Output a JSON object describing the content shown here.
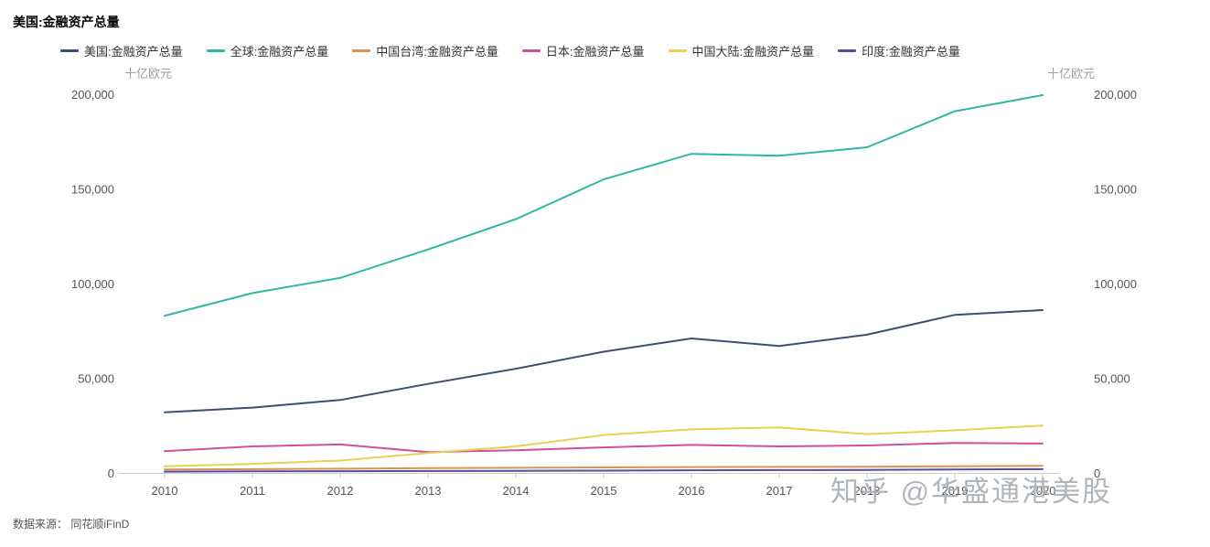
{
  "title": "美国:金融资产总量",
  "axis_unit_left": "十亿欧元",
  "axis_unit_right": "十亿欧元",
  "watermark": "知乎 @华盛通港美股",
  "source": "数据来源： 同花顺iFinD",
  "chart_data": {
    "type": "line",
    "x": [
      2010,
      2011,
      2012,
      2013,
      2014,
      2015,
      2016,
      2017,
      2018,
      2019,
      2020
    ],
    "ylim": [
      0,
      200000
    ],
    "yticks": [
      0,
      50000,
      100000,
      150000,
      200000
    ],
    "grid": false,
    "legend_position": "top",
    "axis_color": "#cccccc",
    "tick_label_color": "#555555",
    "series": [
      {
        "name": "美国:金融资产总量",
        "color": "#3f4e73",
        "values": [
          32000,
          34500,
          38500,
          47000,
          55000,
          64000,
          71000,
          67000,
          73000,
          83500,
          86000
        ]
      },
      {
        "name": "全球:金融资产总量",
        "color": "#2eb7a5",
        "values": [
          83000,
          95000,
          103000,
          118000,
          134000,
          155000,
          168500,
          167500,
          172000,
          191000,
          199500
        ]
      },
      {
        "name": "中国台湾:金融资产总量",
        "color": "#dd9250",
        "values": [
          1800,
          2000,
          2200,
          2500,
          2700,
          2900,
          3100,
          3200,
          3300,
          3500,
          3700
        ]
      },
      {
        "name": "日本:金融资产总量",
        "color": "#d14f9c",
        "values": [
          11500,
          14000,
          15000,
          11000,
          12000,
          13500,
          14800,
          14000,
          14500,
          15800,
          15500
        ]
      },
      {
        "name": "中国大陆:金融资产总量",
        "color": "#e8d052",
        "values": [
          3500,
          4800,
          6500,
          10500,
          14000,
          20000,
          23000,
          24000,
          20500,
          22500,
          25000
        ]
      },
      {
        "name": "印度:金融资产总量",
        "color": "#514fa0",
        "values": [
          700,
          800,
          900,
          1000,
          1100,
          1200,
          1400,
          1500,
          1600,
          1800,
          2000
        ]
      }
    ]
  }
}
